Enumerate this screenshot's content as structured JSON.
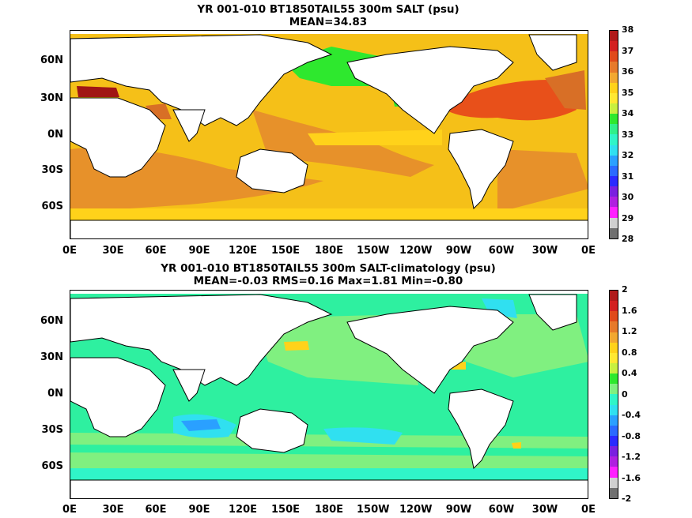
{
  "top": {
    "title": "YR 001-010 BT1850TAIL55 300m SALT (psu)",
    "subtitle": "MEAN=34.83",
    "colorbar_labels": [
      "38",
      "37",
      "36",
      "35",
      "34",
      "33",
      "32",
      "31",
      "30",
      "29",
      "28"
    ],
    "colorbar_colors": [
      "#b01a1a",
      "#d32020",
      "#e04a1a",
      "#e77a2a",
      "#f2a830",
      "#ffd21a",
      "#ffe832",
      "#c8f040",
      "#2ee82e",
      "#30f08a",
      "#30f5c8",
      "#30e0f0",
      "#2aa0ff",
      "#2a6aff",
      "#2a2aff",
      "#7a20e0",
      "#b020e0",
      "#ff20ff",
      "#d0d0d0",
      "#707070"
    ],
    "background_color": "#f5c018"
  },
  "bottom": {
    "title": "YR 001-010 BT1850TAIL55 300m SALT-climatology (psu)",
    "subtitle": "MEAN=-0.03   RMS=0.16   Max=1.81   Min=-0.80",
    "colorbar_labels": [
      "2",
      "1.6",
      "1.2",
      "0.8",
      "0.4",
      "0",
      "-0.4",
      "-0.8",
      "-1.2",
      "-1.6",
      "-2"
    ],
    "colorbar_colors": [
      "#b01a1a",
      "#d32020",
      "#e04a1a",
      "#e77a2a",
      "#f2a830",
      "#ffd21a",
      "#ffe832",
      "#c8f040",
      "#2ee82e",
      "#80f080",
      "#30f5c8",
      "#30e0f0",
      "#2aa0ff",
      "#2a6aff",
      "#2a2aff",
      "#7a20e0",
      "#b020e0",
      "#ff20ff",
      "#d0d0d0",
      "#707070"
    ],
    "background_color": "#2ef0a0"
  },
  "lat_labels": [
    "60N",
    "30N",
    "0N",
    "30S",
    "60S"
  ],
  "lon_labels": [
    "0E",
    "30E",
    "60E",
    "90E",
    "120E",
    "150E",
    "180E",
    "150W",
    "120W",
    "90W",
    "60W",
    "30W",
    "0E"
  ],
  "land_color": "#ffffff"
}
